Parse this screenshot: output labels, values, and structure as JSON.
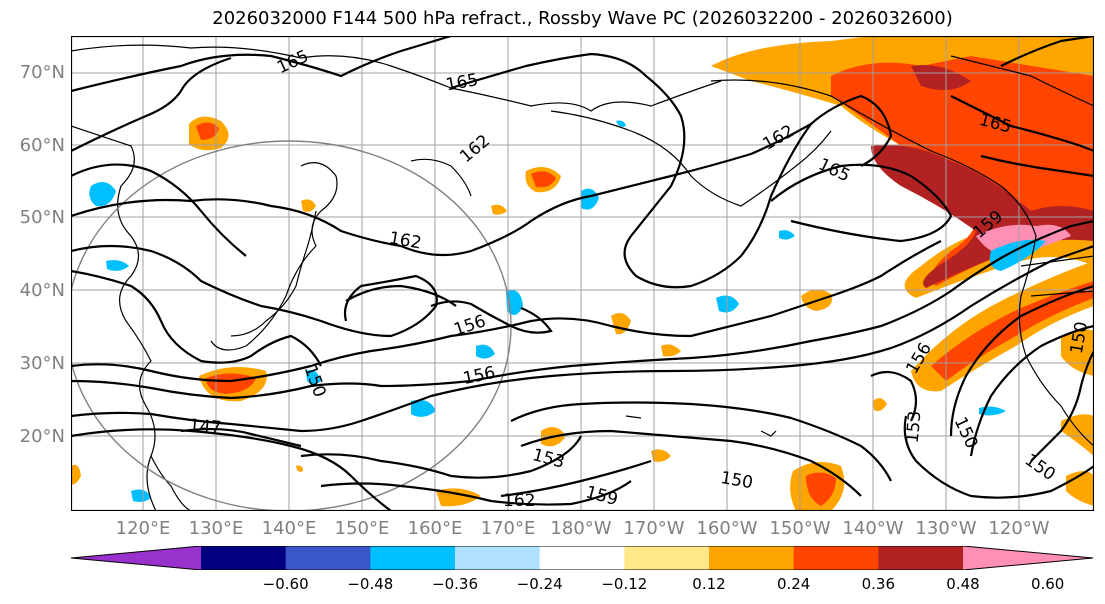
{
  "title": "2026032000 F144 500 hPa refract., Rossby Wave PC (2026032200 - 2026032600)",
  "lat_labels": [
    "70°N",
    "60°N",
    "50°N",
    "40°N",
    "30°N",
    "20°N"
  ],
  "lon_labels": [
    "120°E",
    "130°E",
    "140°E",
    "150°E",
    "160°E",
    "170°E",
    "180°W",
    "170°W",
    "160°W",
    "150°W",
    "140°W",
    "130°W",
    "120°W"
  ],
  "contour_labels": [
    "165",
    "165",
    "162",
    "162",
    "165",
    "165",
    "162",
    "156",
    "156",
    "150",
    "147",
    "153",
    "150",
    "159",
    "162",
    "156",
    "153",
    "150",
    "150",
    "150",
    "159"
  ],
  "colorbar": {
    "ticks": [
      "−0.60",
      "−0.48",
      "−0.36",
      "−0.24",
      "−0.12",
      "0.12",
      "0.24",
      "0.36",
      "0.48",
      "0.60"
    ],
    "colors": {
      "below": "#9932cc",
      "b1": "#000080",
      "b2": "#3a56c7",
      "b3": "#00bfff",
      "b4": "#b0e0ff",
      "mid": "#ffffff",
      "r1": "#ffe88a",
      "r2": "#ffa500",
      "r3": "#ff4500",
      "r4": "#b22222",
      "above": "#ff8fb3"
    }
  }
}
